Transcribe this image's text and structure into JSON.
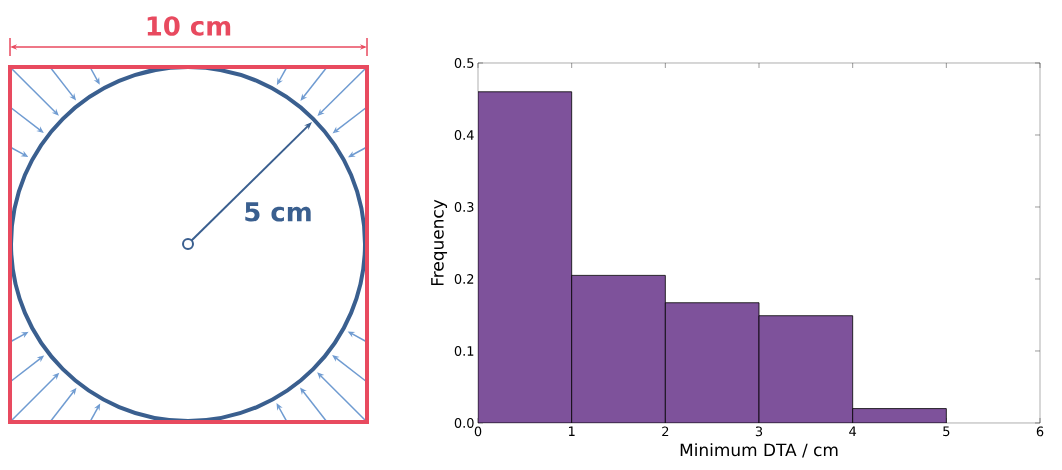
{
  "chart_data": [
    {
      "type": "other",
      "annotations": [
        "10 cm",
        "5 cm"
      ]
    },
    {
      "type": "histogram",
      "bins": [
        0,
        1,
        2,
        3,
        4,
        5
      ],
      "values": [
        0.46,
        0.205,
        0.167,
        0.149,
        0.02
      ],
      "color": "#7e529b",
      "xlim": [
        0,
        6
      ],
      "ylim": [
        0,
        0.5
      ],
      "xticks": [
        0,
        1,
        2,
        3,
        4,
        5,
        6
      ],
      "yticks": [
        {
          "value": 0,
          "label": "0.0"
        },
        0.1,
        0.2,
        0.3,
        0.4,
        0.5
      ],
      "xlabel": "Minimum DTA / cm",
      "ylabel": "Frequency"
    }
  ]
}
